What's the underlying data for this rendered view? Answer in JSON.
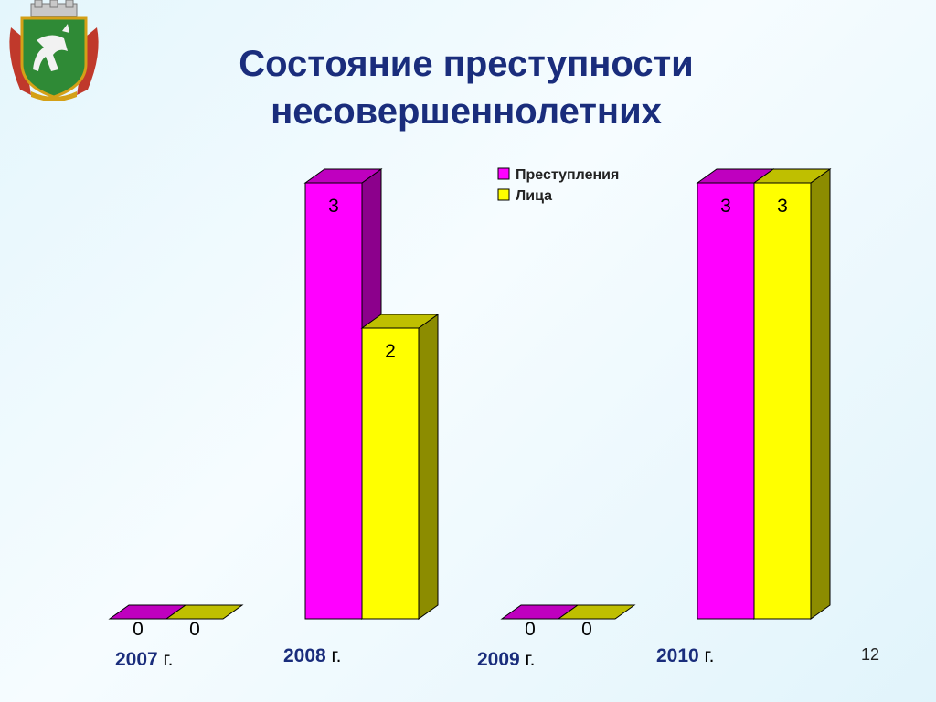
{
  "slide": {
    "title_line1": "Состояние преступности",
    "title_line2": "несовершеннолетних",
    "page_number": "12"
  },
  "colors": {
    "crimes": "#ff00ff",
    "persons": "#ffff00",
    "title": "#1a2d7c"
  },
  "chart_data": {
    "type": "bar",
    "categories": [
      "2007",
      "2008",
      "2009",
      "2010"
    ],
    "category_suffix": "г.",
    "series": [
      {
        "name": "Преступления",
        "values": [
          0,
          3,
          0,
          3
        ]
      },
      {
        "name": "Лица",
        "values": [
          0,
          2,
          0,
          3
        ]
      }
    ],
    "data_labels": true,
    "ylim": [
      0,
      3
    ],
    "legend": "top-center",
    "style": "3d-columns",
    "grid": false,
    "title": "",
    "xlabel": "",
    "ylabel": ""
  }
}
